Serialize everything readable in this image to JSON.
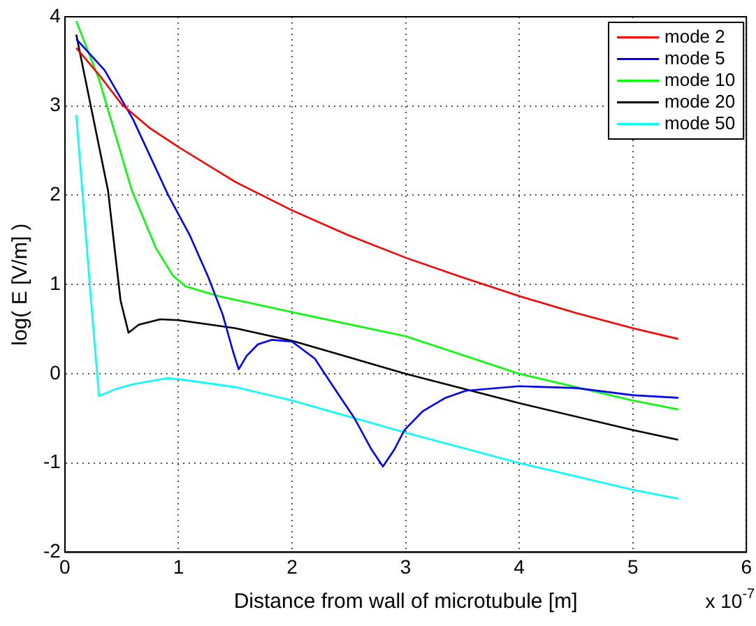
{
  "chart_data": {
    "type": "line",
    "xlabel": "Distance from wall of microtubule [m]",
    "ylabel": "log( E [V/m] )",
    "annotations": [
      "x 10$^{-7}$"
    ],
    "xlim": [
      0,
      6
    ],
    "xticks": [
      0,
      1,
      2,
      3,
      4,
      5,
      6
    ],
    "ylim": [
      -2,
      4
    ],
    "yticks": [
      -2,
      -1,
      0,
      1,
      2,
      3,
      4
    ],
    "grid": true,
    "legend": "top right",
    "line_style": "solid",
    "marker": "none",
    "series": [
      {
        "name": "mode 2",
        "color": "#ff0000",
        "x": [
          0.1,
          0.3,
          0.5,
          0.75,
          1,
          1.5,
          2,
          2.5,
          3,
          3.5,
          4,
          4.5,
          5,
          5.4
        ],
        "values": [
          3.65,
          3.35,
          3.02,
          2.75,
          2.54,
          2.15,
          1.83,
          1.55,
          1.3,
          1.08,
          0.87,
          0.68,
          0.51,
          0.39
        ]
      },
      {
        "name": "mode 5",
        "color": "#0000ff",
        "x": [
          0.1,
          0.35,
          0.6,
          0.91,
          1.1,
          1.26,
          1.39,
          1.48,
          1.53,
          1.6,
          1.7,
          1.82,
          2,
          2.2,
          2.36,
          2.55,
          2.7,
          2.8,
          2.9,
          2.99,
          3.15,
          3.35,
          3.53,
          4,
          4.5,
          5,
          5.4
        ],
        "values": [
          3.75,
          3.4,
          2.85,
          2.0,
          1.55,
          1.09,
          0.66,
          0.25,
          0.05,
          0.2,
          0.33,
          0.38,
          0.36,
          0.17,
          -0.14,
          -0.5,
          -0.85,
          -1.04,
          -0.85,
          -0.63,
          -0.42,
          -0.27,
          -0.19,
          -0.14,
          -0.16,
          -0.24,
          -0.27
        ]
      },
      {
        "name": "mode 10",
        "color": "#00ff00",
        "x": [
          0.1,
          0.3,
          0.59,
          0.8,
          0.95,
          1.06,
          1.35,
          2,
          3,
          4,
          5,
          5.4
        ],
        "values": [
          3.95,
          3.3,
          2.05,
          1.41,
          1.1,
          0.98,
          0.87,
          0.69,
          0.42,
          0.0,
          -0.3,
          -0.4
        ]
      },
      {
        "name": "mode 20",
        "color": "#000000",
        "x": [
          0.1,
          0.38,
          0.49,
          0.56,
          0.65,
          0.84,
          1,
          1.5,
          2,
          3,
          4,
          5,
          5.4
        ],
        "values": [
          3.8,
          2.05,
          0.82,
          0.46,
          0.55,
          0.61,
          0.6,
          0.51,
          0.37,
          0.0,
          -0.33,
          -0.63,
          -0.74
        ]
      },
      {
        "name": "mode 50",
        "color": "#00ffff",
        "x": [
          0.1,
          0.23,
          0.3,
          0.45,
          0.59,
          0.9,
          1,
          1.5,
          2,
          3,
          4,
          5,
          5.4
        ],
        "values": [
          2.9,
          0.82,
          -0.25,
          -0.17,
          -0.12,
          -0.05,
          -0.06,
          -0.15,
          -0.3,
          -0.66,
          -1.0,
          -1.3,
          -1.4
        ]
      }
    ]
  }
}
